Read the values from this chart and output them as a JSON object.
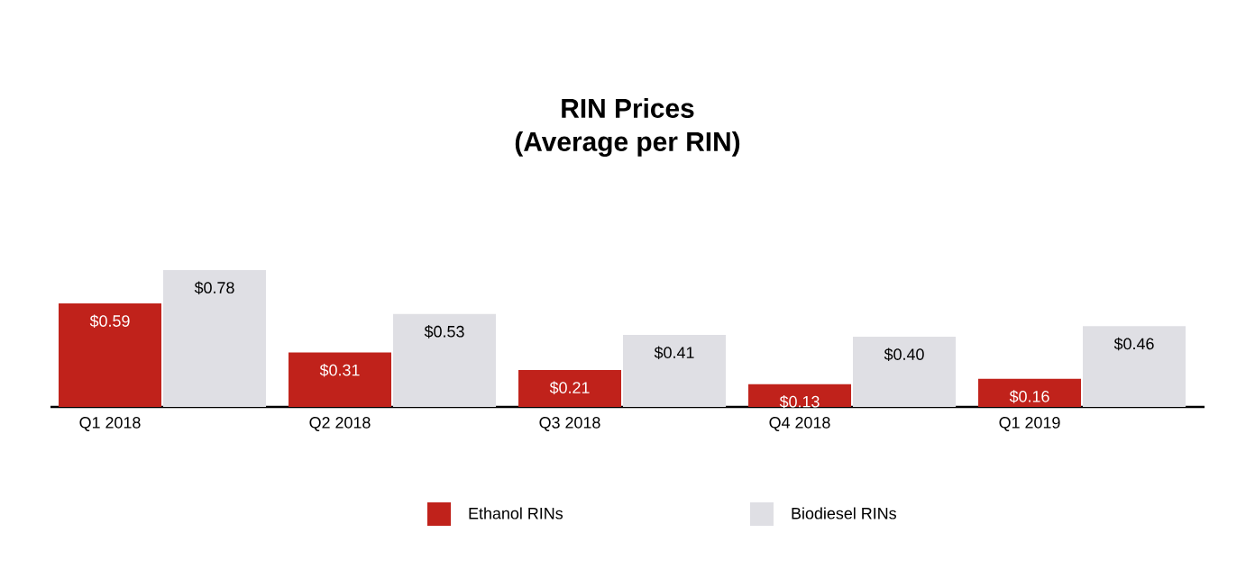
{
  "chart_data": {
    "type": "bar",
    "title": "RIN Prices",
    "subtitle": "(Average per RIN)",
    "categories": [
      "Q1 2018",
      "Q2 2018",
      "Q3 2018",
      "Q4 2018",
      "Q1 2019"
    ],
    "series": [
      {
        "name": "Ethanol RINs",
        "color": "#c0221b",
        "values": [
          0.59,
          0.31,
          0.21,
          0.13,
          0.16
        ],
        "value_labels": [
          "$0.59",
          "$0.31",
          "$0.21",
          "$0.13",
          "$0.16"
        ]
      },
      {
        "name": "Biodiesel RINs",
        "color": "#dfdfe4",
        "values": [
          0.78,
          0.53,
          0.41,
          0.4,
          0.46
        ],
        "value_labels": [
          "$0.78",
          "$0.53",
          "$0.41",
          "$0.40",
          "$0.46"
        ]
      }
    ],
    "legend": "bottom"
  }
}
